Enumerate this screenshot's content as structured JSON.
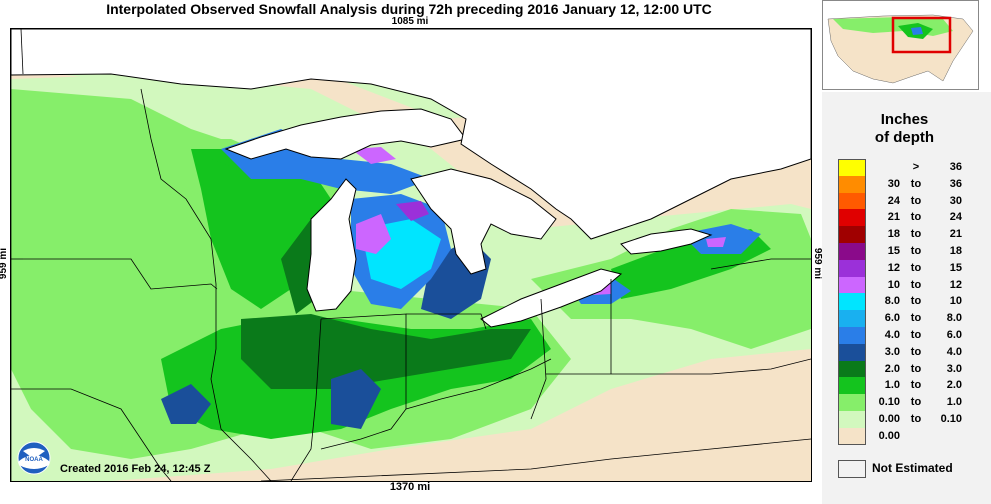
{
  "title": "Interpolated Observed Snowfall Analysis during 72h preceding 2016 January 12, 12:00 UTC",
  "dimensions": {
    "top": "1085 mi",
    "bottom": "1370 mi",
    "left": "959 mi",
    "right": "959 mi"
  },
  "created": "Created 2016 Feb 24, 12:45 Z",
  "logo": {
    "text": "NOAA",
    "icon": "noaa-logo-icon"
  },
  "legend": {
    "title_line1": "Inches",
    "title_line2": "of depth",
    "rows": [
      {
        "lo": "",
        "to": ">",
        "hi": "36",
        "color": "#ffff00"
      },
      {
        "lo": "30",
        "to": "to",
        "hi": "36",
        "color": "#ff8c00"
      },
      {
        "lo": "24",
        "to": "to",
        "hi": "30",
        "color": "#ff5a00"
      },
      {
        "lo": "21",
        "to": "to",
        "hi": "24",
        "color": "#e00000"
      },
      {
        "lo": "18",
        "to": "to",
        "hi": "21",
        "color": "#a00000"
      },
      {
        "lo": "15",
        "to": "to",
        "hi": "18",
        "color": "#8a0a8a"
      },
      {
        "lo": "12",
        "to": "to",
        "hi": "15",
        "color": "#9b30d9"
      },
      {
        "lo": "10",
        "to": "to",
        "hi": "12",
        "color": "#cc66ff"
      },
      {
        "lo": "8.0",
        "to": "to",
        "hi": "10",
        "color": "#00e5ff"
      },
      {
        "lo": "6.0",
        "to": "to",
        "hi": "8.0",
        "color": "#19b0f0"
      },
      {
        "lo": "4.0",
        "to": "to",
        "hi": "6.0",
        "color": "#2a7ee8"
      },
      {
        "lo": "3.0",
        "to": "to",
        "hi": "4.0",
        "color": "#1a4f9a"
      },
      {
        "lo": "2.0",
        "to": "to",
        "hi": "3.0",
        "color": "#0a7a1a"
      },
      {
        "lo": "1.0",
        "to": "to",
        "hi": "2.0",
        "color": "#14c41e"
      },
      {
        "lo": "0.10",
        "to": "to",
        "hi": "1.0",
        "color": "#86ee6a"
      },
      {
        "lo": "0.00",
        "to": "to",
        "hi": "0.10",
        "color": "#d2f8be"
      },
      {
        "lo": "0.00",
        "to": "",
        "hi": "",
        "color": "#f5e3c8"
      }
    ],
    "not_estimated": "Not Estimated"
  },
  "colors": {
    "land_bare": "#f5e3c8",
    "water": "#ffffff",
    "highlight_box": "#e00000"
  }
}
